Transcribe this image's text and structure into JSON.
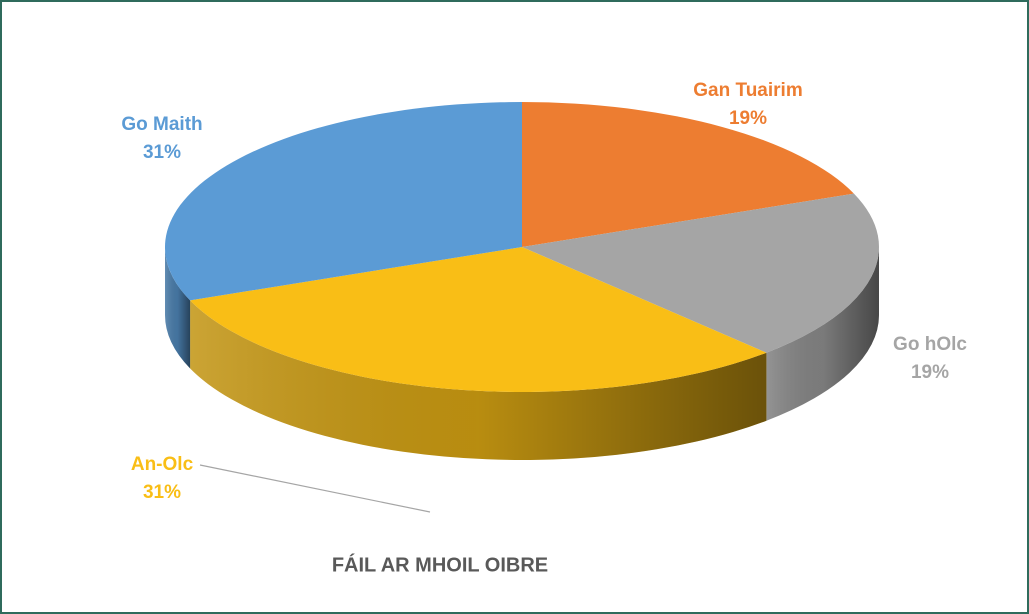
{
  "chart_data": {
    "type": "pie",
    "title": "FÁIL AR MHOIL OIBRE",
    "categories": [
      "Gan Tuairim",
      "Go hOlc",
      "An-Olc",
      "Go Maith"
    ],
    "values": [
      19,
      19,
      31,
      31
    ],
    "value_labels": [
      "19%",
      "19%",
      "31%",
      "31%"
    ],
    "colors": [
      "#ED7D31",
      "#A5A5A5",
      "#F9BE16",
      "#5B9BD5"
    ]
  }
}
